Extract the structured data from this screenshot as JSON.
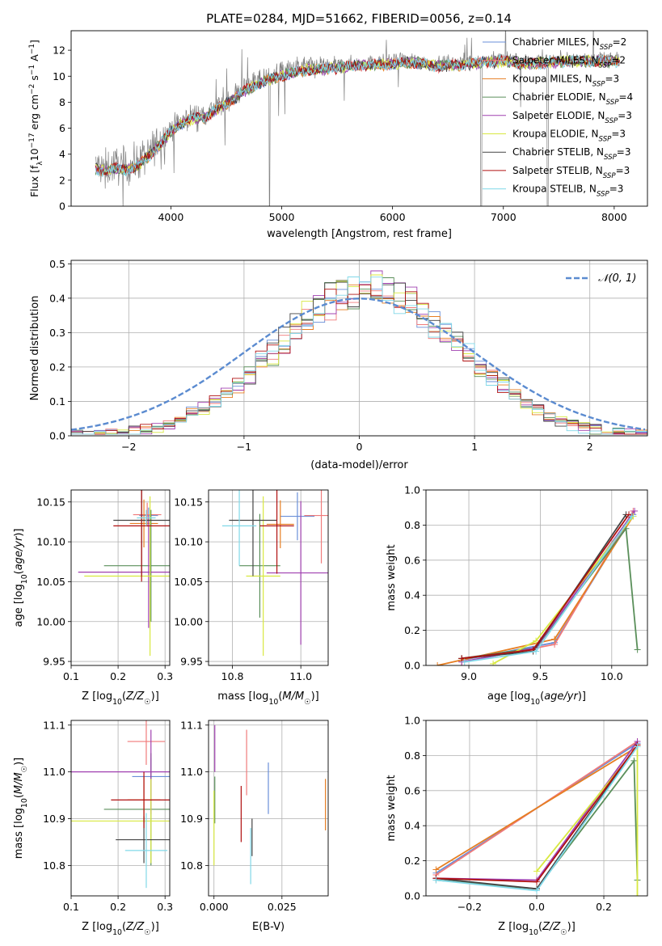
{
  "figure": {
    "title": "PLATE=0284, MJD=51662, FIBERID=0056, z=0.14"
  },
  "colors": {
    "chabrier_miles": "#6a8fd8",
    "salpeter_miles": "#f07a7a",
    "kroupa_miles": "#e67e22",
    "chabrier_elodie": "#5a8f5a",
    "salpeter_elodie": "#a040b0",
    "kroupa_elodie": "#d8e840",
    "chabrier_stelib": "#444444",
    "salpeter_stelib": "#b01010",
    "kroupa_stelib": "#80d8e8",
    "data": "#808080",
    "grid": "#b0b0b0",
    "normal": "#5b8bd0"
  },
  "chart_data": [
    {
      "id": "spectrum",
      "type": "line",
      "xlabel": "wavelength [Angstrom, rest frame]",
      "ylabel": "Flux [f_λ10^-17 erg cm^-2 s^-1 A^-1]",
      "xlim": [
        3100,
        8300
      ],
      "ylim": [
        0,
        13.5
      ],
      "xticks": [
        "4000",
        "5000",
        "6000",
        "7000",
        "8000"
      ],
      "yticks": [
        "0",
        "2",
        "4",
        "6",
        "8",
        "10",
        "12"
      ],
      "grid": false,
      "legend_position": "upper-right",
      "legend": [
        {
          "text": "Chabrier MILES, N",
          "sub": "SSP",
          "n": "=2",
          "color": "chabrier_miles"
        },
        {
          "text": "Salpeter MILES, N",
          "sub": "SSP",
          "n": "=2",
          "color": "salpeter_miles"
        },
        {
          "text": "Kroupa MILES, N",
          "sub": "SSP",
          "n": "=3",
          "color": "kroupa_miles"
        },
        {
          "text": "Chabrier ELODIE, N",
          "sub": "SSP",
          "n": "=4",
          "color": "chabrier_elodie"
        },
        {
          "text": "Salpeter ELODIE, N",
          "sub": "SSP",
          "n": "=3",
          "color": "salpeter_elodie"
        },
        {
          "text": "Kroupa ELODIE, N",
          "sub": "SSP",
          "n": "=3",
          "color": "kroupa_elodie"
        },
        {
          "text": "Chabrier STELIB, N",
          "sub": "SSP",
          "n": "=3",
          "color": "chabrier_stelib"
        },
        {
          "text": "Salpeter STELIB, N",
          "sub": "SSP",
          "n": "=3",
          "color": "salpeter_stelib"
        },
        {
          "text": "Kroupa STELIB, N",
          "sub": "SSP",
          "n": "=3",
          "color": "kroupa_stelib"
        }
      ],
      "continuum": {
        "x": [
          3320,
          3420,
          3500,
          3600,
          3700,
          3800,
          3900,
          4000,
          4100,
          4200,
          4300,
          4400,
          4500,
          4600,
          4700,
          4800,
          5000,
          5200,
          5400,
          5600,
          5800,
          6000,
          6200,
          6400,
          6600,
          6800,
          7000,
          7200,
          7400,
          7600,
          7800,
          8000
        ],
        "y": [
          3.1,
          2.9,
          3.2,
          3.0,
          3.4,
          4.1,
          5.0,
          6.0,
          6.6,
          7.0,
          7.1,
          7.6,
          8.1,
          8.7,
          9.3,
          9.7,
          10.3,
          10.7,
          10.8,
          11.0,
          11.1,
          11.2,
          11.3,
          11.0,
          11.1,
          11.3,
          11.4,
          11.2,
          11.3,
          11.4,
          11.4,
          11.4
        ]
      }
    },
    {
      "id": "residuals",
      "type": "bar",
      "xlabel": "(data-model)/error",
      "ylabel": "Normed distribution",
      "xlim": [
        -2.5,
        2.5
      ],
      "ylim": [
        0,
        0.51
      ],
      "xticks": [
        "−2",
        "−1",
        "0",
        "1",
        "2"
      ],
      "yticks": [
        "0.0",
        "0.1",
        "0.2",
        "0.3",
        "0.4",
        "0.5"
      ],
      "grid": true,
      "legend": "𝒩(0, 1)",
      "legend_position": "upper-right",
      "bin_width": 0.1
    },
    {
      "id": "age_vs_z",
      "type": "scatter",
      "xlabel": "Z [log10(Z/Z☉)]",
      "ylabel": "age [log10(age/yr)]",
      "xlim": [
        0.1,
        0.31
      ],
      "ylim": [
        9.945,
        10.165
      ],
      "xticks": [
        "0.1",
        "0.2",
        "0.3"
      ],
      "yticks": [
        "9.95",
        "10.00",
        "10.05",
        "10.10",
        "10.15"
      ],
      "grid": true,
      "points": [
        {
          "color": "chabrier_miles",
          "x": 0.265,
          "xerr": 0.02,
          "y": 10.133,
          "yerr": 0.01
        },
        {
          "color": "salpeter_miles",
          "x": 0.262,
          "xerr": 0.03,
          "y": 10.134,
          "yerr": 0.015
        },
        {
          "color": "kroupa_miles",
          "x": 0.255,
          "xerr": 0.03,
          "y": 10.123,
          "yerr": 0.03
        },
        {
          "color": "chabrier_elodie",
          "x": 0.27,
          "xerr": 0.1,
          "y": 10.07,
          "yerr": 0.07
        },
        {
          "color": "salpeter_elodie",
          "x": 0.265,
          "xerr": 0.15,
          "y": 10.062,
          "yerr": 0.07
        },
        {
          "color": "kroupa_elodie",
          "x": 0.268,
          "xerr": 0.14,
          "y": 10.057,
          "yerr": 0.1
        },
        {
          "color": "chabrier_stelib",
          "x": 0.25,
          "xerr": 0.06,
          "y": 10.127,
          "yerr": 0.07
        },
        {
          "color": "salpeter_stelib",
          "x": 0.25,
          "xerr": 0.06,
          "y": 10.12,
          "yerr": 0.07
        },
        {
          "color": "kroupa_stelib",
          "x": 0.26,
          "xerr": 0.02,
          "y": 10.13,
          "yerr": 0.01
        }
      ]
    },
    {
      "id": "age_vs_mass",
      "type": "scatter",
      "xlabel": "mass [log10(M/M☉)]",
      "ylabel": "",
      "xlim": [
        10.73,
        11.08
      ],
      "ylim": [
        9.945,
        10.165
      ],
      "xticks": [
        "10.8",
        "11.0"
      ],
      "yticks": [
        "9.95",
        "10.00",
        "10.05",
        "10.10",
        "10.15"
      ],
      "grid": true,
      "points": [
        {
          "color": "chabrier_miles",
          "x": 10.99,
          "xerr": 0.05,
          "y": 10.132,
          "yerr": 0.03
        },
        {
          "color": "salpeter_miles",
          "x": 11.06,
          "xerr": 0.05,
          "y": 10.133,
          "yerr": 0.06
        },
        {
          "color": "kroupa_miles",
          "x": 10.94,
          "xerr": 0.04,
          "y": 10.122,
          "yerr": 0.03
        },
        {
          "color": "chabrier_elodie",
          "x": 10.88,
          "xerr": 0.06,
          "y": 10.07,
          "yerr": 0.065
        },
        {
          "color": "salpeter_elodie",
          "x": 11.0,
          "xerr": 0.1,
          "y": 10.061,
          "yerr": 0.09
        },
        {
          "color": "kroupa_elodie",
          "x": 10.89,
          "xerr": 0.05,
          "y": 10.057,
          "yerr": 0.1
        },
        {
          "color": "chabrier_stelib",
          "x": 10.86,
          "xerr": 0.07,
          "y": 10.127,
          "yerr": 0.07
        },
        {
          "color": "salpeter_stelib",
          "x": 10.93,
          "xerr": 0.05,
          "y": 10.12,
          "yerr": 0.06
        },
        {
          "color": "kroupa_stelib",
          "x": 10.82,
          "xerr": 0.05,
          "y": 10.12,
          "yerr": 0.05
        }
      ]
    },
    {
      "id": "mass_weight_vs_age",
      "type": "line",
      "xlabel": "age  [log10(age/yr)]",
      "ylabel": "mass weight",
      "xlim": [
        8.7,
        10.25
      ],
      "ylim": [
        0,
        1.0
      ],
      "xticks": [
        "9.0",
        "9.5",
        "10.0"
      ],
      "yticks": [
        "0.0",
        "0.2",
        "0.4",
        "0.6",
        "0.8",
        "1.0"
      ],
      "grid": true,
      "series": [
        {
          "color": "chabrier_miles",
          "x": [
            8.95,
            9.6,
            10.15
          ],
          "y": [
            0.03,
            0.13,
            0.86
          ]
        },
        {
          "color": "salpeter_miles",
          "x": [
            8.95,
            9.6,
            10.15
          ],
          "y": [
            0.02,
            0.12,
            0.88
          ]
        },
        {
          "color": "kroupa_miles",
          "x": [
            8.78,
            9.6,
            10.15
          ],
          "y": [
            0.0,
            0.15,
            0.85
          ]
        },
        {
          "color": "chabrier_elodie",
          "x": [
            8.95,
            9.47,
            10.1,
            10.18
          ],
          "y": [
            0.04,
            0.1,
            0.78,
            0.09
          ]
        },
        {
          "color": "salpeter_elodie",
          "x": [
            8.95,
            9.47,
            10.16
          ],
          "y": [
            0.02,
            0.1,
            0.88
          ]
        },
        {
          "color": "kroupa_elodie",
          "x": [
            9.17,
            9.47,
            10.15
          ],
          "y": [
            0.01,
            0.14,
            0.85
          ]
        },
        {
          "color": "chabrier_stelib",
          "x": [
            8.95,
            9.45,
            10.1
          ],
          "y": [
            0.04,
            0.08,
            0.86
          ]
        },
        {
          "color": "salpeter_stelib",
          "x": [
            8.95,
            9.45,
            10.12
          ],
          "y": [
            0.04,
            0.09,
            0.86
          ]
        },
        {
          "color": "kroupa_stelib",
          "x": [
            8.97,
            9.47,
            10.14
          ],
          "y": [
            0.02,
            0.08,
            0.85
          ]
        }
      ]
    },
    {
      "id": "mass_vs_z",
      "type": "scatter",
      "xlabel": "Z [log10(Z/Z☉)]",
      "ylabel": "mass [log10(M/M☉)]",
      "xlim": [
        0.1,
        0.31
      ],
      "ylim": [
        10.735,
        11.11
      ],
      "xticks": [
        "0.1",
        "0.2",
        "0.3"
      ],
      "yticks": [
        "10.8",
        "10.9",
        "11.0",
        "11.1"
      ],
      "grid": true,
      "points": [
        {
          "color": "chabrier_miles",
          "x": 0.27,
          "xerr": 0.04,
          "y": 10.99,
          "yerr": 0.04
        },
        {
          "color": "salpeter_miles",
          "x": 0.26,
          "xerr": 0.04,
          "y": 11.065,
          "yerr": 0.05
        },
        {
          "color": "kroupa_miles",
          "x": 0.255,
          "xerr": 0.035,
          "y": 10.94,
          "yerr": 0.05
        },
        {
          "color": "chabrier_elodie",
          "x": 0.27,
          "xerr": 0.1,
          "y": 10.92,
          "yerr": 0.12
        },
        {
          "color": "salpeter_elodie",
          "x": 0.27,
          "xerr": 0.17,
          "y": 11.0,
          "yerr": 0.09
        },
        {
          "color": "kroupa_elodie",
          "x": 0.27,
          "xerr": 0.17,
          "y": 10.895,
          "yerr": 0.09
        },
        {
          "color": "chabrier_stelib",
          "x": 0.255,
          "xerr": 0.06,
          "y": 10.855,
          "yerr": 0.05
        },
        {
          "color": "salpeter_stelib",
          "x": 0.255,
          "xerr": 0.07,
          "y": 10.94,
          "yerr": 0.06
        },
        {
          "color": "kroupa_stelib",
          "x": 0.26,
          "xerr": 0.045,
          "y": 10.832,
          "yerr": 0.08
        }
      ]
    },
    {
      "id": "mass_vs_ebv",
      "type": "scatter",
      "xlabel": "E(B-V)",
      "ylabel": "",
      "xlim": [
        -0.002,
        0.042
      ],
      "ylim": [
        10.735,
        11.11
      ],
      "xticks": [
        "0.000",
        "0.025"
      ],
      "yticks": [
        "10.8",
        "10.9",
        "11.0",
        "11.1"
      ],
      "grid": true,
      "points": [
        {
          "color": "chabrier_miles",
          "x": 0.02,
          "xerr": 0,
          "y": 10.965,
          "yerr": 0.055
        },
        {
          "color": "salpeter_miles",
          "x": 0.012,
          "xerr": 0,
          "y": 11.02,
          "yerr": 0.07
        },
        {
          "color": "kroupa_miles",
          "x": 0.041,
          "xerr": 0,
          "y": 10.93,
          "yerr": 0.055
        },
        {
          "color": "chabrier_elodie",
          "x": 0.0003,
          "xerr": 0,
          "y": 10.94,
          "yerr": 0.05
        },
        {
          "color": "salpeter_elodie",
          "x": 0.0003,
          "xerr": 0,
          "y": 11.05,
          "yerr": 0.05
        },
        {
          "color": "kroupa_elodie",
          "x": 0.0,
          "xerr": 0,
          "y": 10.88,
          "yerr": 0.08
        },
        {
          "color": "chabrier_stelib",
          "x": 0.014,
          "xerr": 0,
          "y": 10.86,
          "yerr": 0.04
        },
        {
          "color": "salpeter_stelib",
          "x": 0.01,
          "xerr": 0,
          "y": 10.91,
          "yerr": 0.06
        },
        {
          "color": "kroupa_stelib",
          "x": 0.0135,
          "xerr": 0,
          "y": 10.82,
          "yerr": 0.06
        }
      ]
    },
    {
      "id": "mass_weight_vs_z",
      "type": "line",
      "xlabel": "Z [log10(Z/Z☉)]",
      "ylabel": "mass weight",
      "xlim": [
        -0.33,
        0.33
      ],
      "ylim": [
        0,
        1.0
      ],
      "xticks": [
        "−0.2",
        "0.0",
        "0.2"
      ],
      "yticks": [
        "0.0",
        "0.2",
        "0.4",
        "0.6",
        "0.8",
        "1.0"
      ],
      "grid": true,
      "series": [
        {
          "color": "chabrier_miles",
          "x": [
            -0.3,
            0.3
          ],
          "y": [
            0.13,
            0.87
          ]
        },
        {
          "color": "salpeter_miles",
          "x": [
            -0.3,
            0.3
          ],
          "y": [
            0.12,
            0.88
          ]
        },
        {
          "color": "kroupa_miles",
          "x": [
            -0.3,
            0.3
          ],
          "y": [
            0.15,
            0.85
          ]
        },
        {
          "color": "chabrier_elodie",
          "x": [
            -0.3,
            0.0,
            0.29,
            0.3
          ],
          "y": [
            0.09,
            0.04,
            0.77,
            0.09
          ]
        },
        {
          "color": "salpeter_elodie",
          "x": [
            -0.3,
            0.0,
            0.3
          ],
          "y": [
            0.1,
            0.09,
            0.88
          ]
        },
        {
          "color": "kroupa_elodie",
          "x": [
            0.0,
            0.3,
            0.3
          ],
          "y": [
            0.14,
            0.85,
            0.0
          ]
        },
        {
          "color": "chabrier_stelib",
          "x": [
            -0.3,
            0.0,
            0.3
          ],
          "y": [
            0.1,
            0.04,
            0.86
          ]
        },
        {
          "color": "salpeter_stelib",
          "x": [
            -0.3,
            0.0,
            0.3
          ],
          "y": [
            0.1,
            0.08,
            0.86
          ]
        },
        {
          "color": "kroupa_stelib",
          "x": [
            -0.3,
            0.0,
            0.3
          ],
          "y": [
            0.09,
            0.03,
            0.85
          ]
        }
      ]
    }
  ]
}
